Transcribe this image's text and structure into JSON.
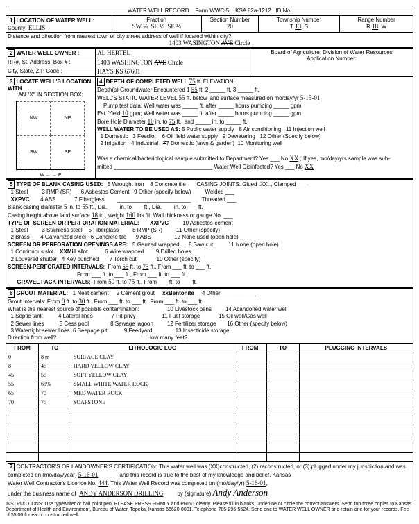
{
  "header": {
    "title": "WATER WELL RECORD",
    "form": "Form WWC-5",
    "statute": "KSA 82a-1212",
    "id_label": "ID No."
  },
  "location": {
    "label": "LOCATION OF WATER WELL:",
    "county_label": "County:",
    "county": "ELLIS",
    "fraction_label": "Fraction",
    "frac1": "SW",
    "frac1_sub": "¼",
    "frac2": "SE",
    "frac2_sub": "¼",
    "frac3": "SE",
    "frac3_sub": "¼",
    "section_label": "Section Number",
    "section": "20",
    "township_label": "Township Number",
    "township": "13",
    "township_dir": "S",
    "range_label": "Range Number",
    "range": "18",
    "range_dir": "W",
    "distance_q": "Distance and direction from nearest town or city street address of well if located within city?",
    "street": "1403 WASINGTON",
    "street_strike": "AVE",
    "street_suffix": "Circle"
  },
  "owner": {
    "label": "WATER WELL OWNER :",
    "name": "AL HERTEL",
    "addr_label": "RR#, St. Address, Box # :",
    "addr": "1403 WASHINGTON",
    "addr_strike": "AVE",
    "addr_suffix": "Circle",
    "city_label": "City, State, ZIP Code :",
    "city": "HAYS KS  67601",
    "board": "Board of Agriculture, Division of Water Resources",
    "appnum": "Application Number:"
  },
  "locate": {
    "label": "LOCATE WELL'S LOCATION WITH",
    "sub": "AN \"X\" IN SECTION BOX:"
  },
  "depth": {
    "label": "DEPTH OF COMPLETED WELL",
    "depth_val": "75",
    "elev_label": "ft. ELEVATION:",
    "gw_label": "Depth(s) Groundwater Encountered",
    "gw1": "55",
    "static_label": "WELL'S STATIC WATER LEVEL",
    "static_val": "55",
    "static_rest": "ft. below land surface measured on mo/day/yr",
    "static_date": "5-15-01",
    "pump_label": "Pump test data:  Well water was",
    "yield_label": "Est. Yield",
    "yield": "10",
    "yield_unit": "gpm;  Well water was",
    "bore_label": "Bore Hole Diameter",
    "bore1": "10",
    "bore_to": "in. to",
    "bore_to_val": "75",
    "use_label": "WELL WATER TO BE USED AS:",
    "uses": [
      "1 Domestic",
      "2 Irrigation",
      "3 Feedlot",
      "4 Industrial",
      "5 Public water supply",
      "6 Oil field water supply",
      "7 Domestic (lawn & garden)",
      "8 Air conditioning",
      "9 Dewatering",
      "10 Monitoring well",
      "11 Injection well",
      "12 Other (Specify below)"
    ],
    "chem_q": "Was a chemical/bacteriological sample submitted to Department? Yes",
    "chem_no": "No",
    "chem_ans": "XX",
    "chem_rest": "; If yes, mo/day/yrs sample was sub-",
    "disinfect": "Water Well Disinfected?    Yes",
    "disinfect_no": "No",
    "disinfect_ans": "XX"
  },
  "casing": {
    "label": "TYPE OF BLANK CASING USED:",
    "opts": [
      "1 Steel",
      "XXPVC",
      "3 RMP (SR)",
      "4 ABS",
      "5 Wrought iron",
      "6 Asbestos-Cement",
      "7 Fiberglass",
      "8 Concrete tile",
      "9 Other (specify below)"
    ],
    "joints": "CASING JOINTS: Glued .XX.., Clamped",
    "welded": "Welded",
    "threaded": "Threaded",
    "dia_label": "Blank casing diameter",
    "dia": "5",
    "dia_to": "in. to",
    "dia_to_val": "55",
    "height_label": "Casing height above land surface",
    "height": "18",
    "weight_label": "in., weight",
    "weight": "160",
    "weight_rest": "lbs./ft. Wall thickness or gauge No."
  },
  "screen": {
    "label": "TYPE OF SCREEN OR PERFORATION MATERIAL:",
    "opts": [
      "1 Steel",
      "2 Brass",
      "3 Stainless steel",
      "4 Galvanized steel",
      "5 Fiberglass",
      "6 Concrete tile",
      "XXPVC",
      "8 RMP (SR)",
      "9 ABS",
      "10 Asbestos-cement",
      "11 Other (specify)",
      "12 None used (open hole)"
    ],
    "open_label": "SCREEN OR PERFORATION OPENINGS ARE:",
    "open_opts": [
      "1 Continuous slot",
      "2 Louvered shutter",
      "XXMill slot",
      "4 Key punched",
      "5 Gauzed wrapped",
      "6 Wire wrapped",
      "7 Torch cut",
      "8 Saw cut",
      "9 Drilled holes",
      "10 Other (specify)",
      "11 None (open hole)"
    ],
    "perf_label": "SCREEN-PERFORATED INTERVALS:",
    "perf_from": "55",
    "perf_to": "75",
    "gravel_label": "GRAVEL PACK INTERVALS:",
    "gravel_from": "50",
    "gravel_to": "75"
  },
  "grout": {
    "label": "GROUT MATERIAL:",
    "opts": [
      "1 Neat cement",
      "2 Cement grout",
      "xxBentonite",
      "4 Other"
    ],
    "int_label": "Grout Intervals:   From",
    "g_from": "0",
    "g_to": "30",
    "contam_q": "What is the nearest source of possible contamination:",
    "contam_opts": [
      "1 Septic tank",
      "2 Sewer lines",
      "3 Watertight sewer lines",
      "4 Lateral lines",
      "5 Cess pool",
      "6 Seepage pit",
      "7 Pit privy",
      "8 Sewage lagoon",
      "9 Feedyard",
      "10 Livestock pens",
      "11 Fuel storage",
      "12 Fertilizer storage",
      "13 Insecticide storage",
      "14 Abandoned water well",
      "15 Oil well/Gas well",
      "16 Other (specify below)"
    ],
    "dir_label": "Direction from well?",
    "howmany": "How many feet?"
  },
  "log": {
    "headers": [
      "FROM",
      "TO",
      "LITHOLOGIC LOG",
      "FROM",
      "TO",
      "PLUGGING INTERVALS"
    ],
    "rows": [
      [
        "0",
        "8 m",
        "SURFACE CLAY",
        "",
        "",
        ""
      ],
      [
        "8",
        "45",
        "HARD YELLOW CLAY",
        "",
        "",
        ""
      ],
      [
        "45",
        "55",
        "SOFT YELLOW CLAY",
        "",
        "",
        ""
      ],
      [
        "55",
        "65%",
        "SMALL WHITE WATER ROCK",
        "",
        "",
        ""
      ],
      [
        "65",
        "70",
        "MED WATER ROCK",
        "",
        "",
        ""
      ],
      [
        "70",
        "75",
        "SOAPSTONE",
        "",
        "",
        ""
      ],
      [
        "",
        "",
        "",
        "",
        "",
        ""
      ],
      [
        "",
        "",
        "",
        "",
        "",
        ""
      ],
      [
        "",
        "",
        "",
        "",
        "",
        ""
      ],
      [
        "",
        "",
        "",
        "",
        "",
        ""
      ],
      [
        "",
        "",
        "",
        "",
        "",
        ""
      ],
      [
        "",
        "",
        "",
        "",
        "",
        ""
      ]
    ]
  },
  "cert": {
    "label": "CONTRACTOR'S OR LANDOWNER'S CERTIFICATION: This water well was (XX)constructed, (2) reconstructed, or (3) plugged under my jurisdiction and was",
    "completed_label": "completed on (mo/day/year)",
    "completed": "5-16-01",
    "record_text": "and this record is true to the best of my knowledge and belief. Kansas",
    "lic_label": "Water Well Contractor's Licence No.",
    "lic": "444",
    "rec_completed": "This Water Well Record was completed on (mo/day/yr)",
    "rec_date": "5-16-01",
    "biz_label": "under the business name of",
    "biz": "ANDY ANDERSON DRILLING",
    "sig_label": "by (signature)",
    "sig": "Andy Anderson",
    "instructions": "INSTRUCTIONS: Use typewriter or ball point pen. PLEASE PRESS FIRMLY and PRINT clearly. Please fill in blanks, underline or circle the correct answers. Send top three copies to Kansas Department of Health and Environment, Bureau of Water, Topeka, Kansas 66620-0001. Telephone 785-296-5524. Send one to WATER WELL OWNER and retain one for your records. Fee of $5.00 for each constructed well."
  }
}
